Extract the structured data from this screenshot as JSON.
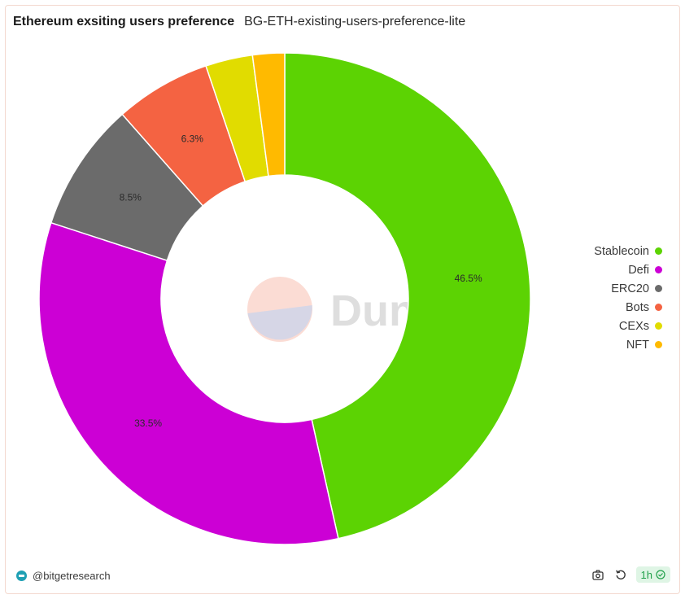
{
  "header": {
    "title": "Ethereum exsiting users preference",
    "subtitle": "BG-ETH-existing-users-preference-lite"
  },
  "watermark": {
    "text": "Dune"
  },
  "footer": {
    "author": "@bitgetresearch",
    "refresh_label": "1h"
  },
  "icons": {
    "camera": "camera-icon",
    "refresh": "refresh-icon",
    "check": "check-circle-icon"
  },
  "chart_data": {
    "type": "pie",
    "donut": true,
    "categories": [
      "Stablecoin",
      "Defi",
      "ERC20",
      "Bots",
      "CEXs",
      "NFT"
    ],
    "values": [
      46.5,
      33.5,
      8.5,
      6.3,
      3.1,
      2.1
    ],
    "colors": [
      "#5cd303",
      "#cc00d5",
      "#6b6b6b",
      "#f46342",
      "#e1dc00",
      "#ffba00"
    ],
    "data_labels": [
      "46.5%",
      "33.5%",
      "8.5%",
      "6.3%",
      "",
      ""
    ],
    "legend_position": "right"
  }
}
